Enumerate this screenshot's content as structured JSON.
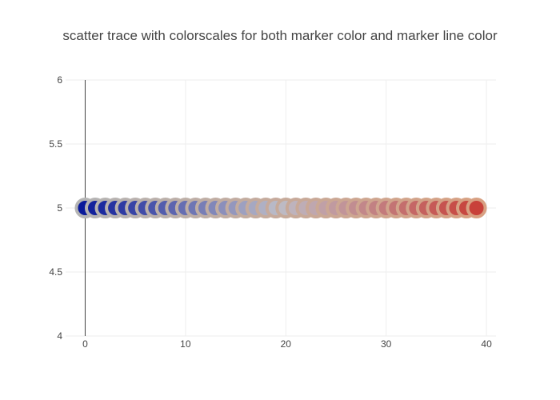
{
  "chart_data": {
    "type": "scatter",
    "title": "scatter trace with colorscales for both marker color and marker line color",
    "xlabel": "",
    "ylabel": "",
    "xlim": [
      -1.95,
      40.95
    ],
    "ylim": [
      4,
      6
    ],
    "grid": true,
    "x_ticks": [
      0,
      10,
      20,
      30,
      40
    ],
    "x_tick_labels": [
      "0",
      "10",
      "20",
      "30",
      "40"
    ],
    "y_ticks": [
      4,
      4.5,
      5,
      5.5,
      6
    ],
    "y_tick_labels": [
      "4",
      "4.5",
      "5",
      "5.5",
      "6"
    ],
    "series": [
      {
        "x": [
          0,
          1,
          2,
          3,
          4,
          5,
          6,
          7,
          8,
          9,
          10,
          11,
          12,
          13,
          14,
          15,
          16,
          17,
          18,
          19,
          20,
          21,
          22,
          23,
          24,
          25,
          26,
          27,
          28,
          29,
          30,
          31,
          32,
          33,
          34,
          35,
          36,
          37,
          38,
          39
        ],
        "y": [
          5,
          5,
          5,
          5,
          5,
          5,
          5,
          5,
          5,
          5,
          5,
          5,
          5,
          5,
          5,
          5,
          5,
          5,
          5,
          5,
          5,
          5,
          5,
          5,
          5,
          5,
          5,
          5,
          5,
          5,
          5,
          5,
          5,
          5,
          5,
          5,
          5,
          5,
          5,
          5
        ],
        "marker_colorscale": "blue-to-red",
        "marker_line_colorscale": "gray-to-tan",
        "colors": {
          "fill_start": "#0a1a9a",
          "fill_mid": "#bdbdc8",
          "fill_end": "#c8413a",
          "line_start": "#b4b4b4",
          "line_end": "#d8a082"
        }
      }
    ]
  }
}
